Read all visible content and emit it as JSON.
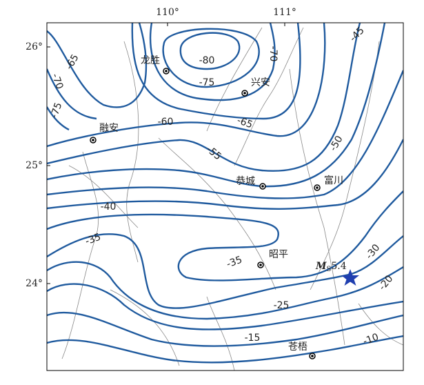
{
  "axes": {
    "x_labels": [
      "110°",
      "111°"
    ],
    "y_labels": [
      "26°",
      "25°",
      "24°"
    ]
  },
  "cities": [
    {
      "label": "龙胜"
    },
    {
      "label": "兴安"
    },
    {
      "label": "融安"
    },
    {
      "label": "恭城"
    },
    {
      "label": "富川"
    },
    {
      "label": "昭平"
    },
    {
      "label": "苍梧"
    }
  ],
  "contour_labels": [
    "-80",
    "-75",
    "-70",
    "-65",
    "-60",
    "-55",
    "-50",
    "-45",
    "-65",
    "-70",
    "-75",
    "-40",
    "-35",
    "-35",
    "-30",
    "-25",
    "-20",
    "-15",
    "-10"
  ],
  "event": {
    "label": "M",
    "subscript": "S",
    "magnitude": "5.4"
  }
}
